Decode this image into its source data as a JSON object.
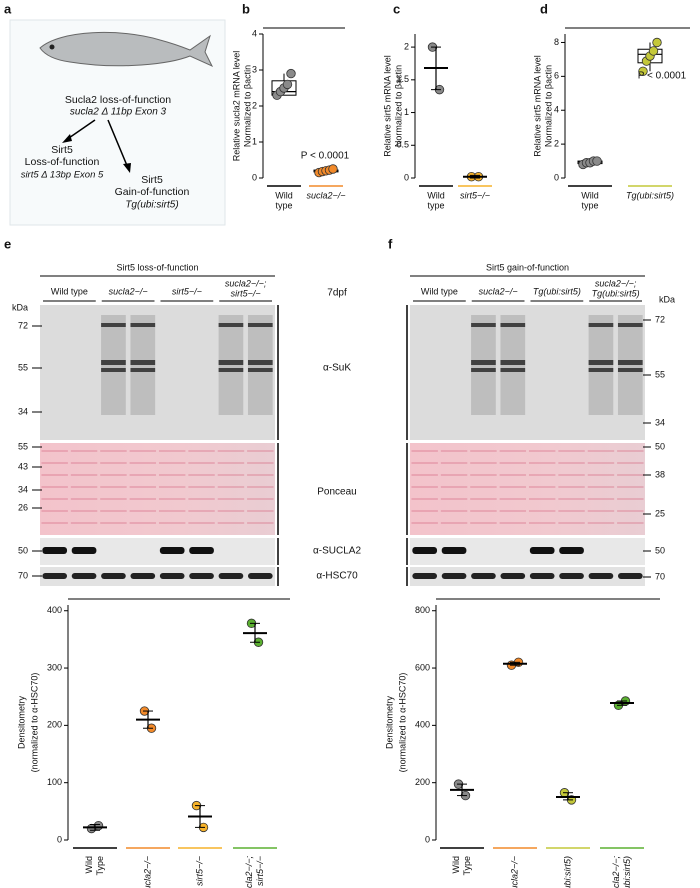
{
  "panel_labels": [
    "a",
    "b",
    "c",
    "d",
    "e",
    "f"
  ],
  "diagram": {
    "title": "Sucla2 loss-of-function",
    "title_sub": "sucla2 Δ 11bp Exon 3",
    "left": [
      "Sirt5",
      "Loss-of-function",
      "sirt5 Δ 13bp Exon 5"
    ],
    "right": [
      "Sirt5",
      "Gain-of-function",
      "Tg(ubi:sirt5)"
    ]
  },
  "chart_data": [
    {
      "type": "box",
      "ylabel": [
        "Relative sucla2 mRNA level",
        "Normalized to βactin"
      ],
      "categories": [
        [
          "Wild",
          "type"
        ],
        [
          "sucla2−/−"
        ]
      ],
      "colors": [
        "#8a8a8a",
        "#f28a2a"
      ],
      "line_colors": [
        "#000000",
        "#f28a2a"
      ],
      "points": [
        [
          2.3,
          2.4,
          2.5,
          2.6,
          2.9
        ],
        [
          0.15,
          0.18,
          0.2,
          0.22,
          0.25
        ]
      ],
      "center": [
        2.4,
        0.2
      ],
      "box": [
        [
          2.3,
          2.7
        ],
        [
          0.17,
          0.22
        ]
      ],
      "ylim": [
        0,
        4
      ],
      "yticks": [
        0,
        1,
        2,
        3,
        4
      ],
      "annotation": "P < 0.0001"
    },
    {
      "type": "dot",
      "ylabel": [
        "Relative sirt5 mRNA level",
        "Normalized to βactin"
      ],
      "categories": [
        [
          "Wild",
          "type"
        ],
        [
          "sirt5−/−"
        ]
      ],
      "colors": [
        "#8a8a8a",
        "#f6b22a"
      ],
      "line_colors": [
        "#000000",
        "#f6b22a"
      ],
      "points": [
        [
          2.0,
          1.35
        ],
        [
          0.02,
          0.02
        ]
      ],
      "center": [
        1.68,
        0.02
      ],
      "error": [
        [
          1.35,
          2.0
        ],
        [
          0.0,
          0.04
        ]
      ],
      "ylim": [
        0,
        2.2
      ],
      "yticks": [
        0,
        0.5,
        1,
        1.5,
        2
      ]
    },
    {
      "type": "box",
      "ylabel": [
        "Relative sirt5 mRNA level",
        "Normalized to βactin"
      ],
      "categories": [
        [
          "Wild",
          "type"
        ],
        [
          "Tg(ubi:sirt5)"
        ]
      ],
      "colors": [
        "#8a8a8a",
        "#c4c83a"
      ],
      "line_colors": [
        "#000000",
        "#c4c83a"
      ],
      "points": [
        [
          0.8,
          0.9,
          0.9,
          1.0,
          1.0
        ],
        [
          6.3,
          6.9,
          7.2,
          7.5,
          8.0
        ]
      ],
      "center": [
        0.95,
        7.3
      ],
      "box": [
        [
          0.85,
          1.0
        ],
        [
          6.8,
          7.6
        ]
      ],
      "ylim": [
        0,
        8.5
      ],
      "yticks": [
        0,
        2,
        4,
        6,
        8
      ],
      "annotation": "P < 0.0001"
    },
    {
      "type": "dot",
      "ylabel": [
        "Densitometry",
        "(normalized to α-HSC70)"
      ],
      "categories": [
        [
          "Wild",
          "Type"
        ],
        [
          "sucla2−/−"
        ],
        [
          "sirt5−/−"
        ],
        [
          "sucla2−/−;",
          "sirt5−/−"
        ]
      ],
      "colors": [
        "#8a8a8a",
        "#f28a2a",
        "#f6b22a",
        "#5bb030"
      ],
      "line_colors": [
        "#000000",
        "#f28a2a",
        "#f6b22a",
        "#5bb030"
      ],
      "points": [
        [
          20,
          25
        ],
        [
          225,
          195
        ],
        [
          60,
          22
        ],
        [
          378,
          345
        ]
      ],
      "center": [
        22,
        210,
        41,
        361
      ],
      "error": [
        [
          17,
          27
        ],
        [
          195,
          225
        ],
        [
          22,
          60
        ],
        [
          345,
          378
        ]
      ],
      "ylim": [
        0,
        410
      ],
      "yticks": [
        0,
        100,
        200,
        300,
        400
      ]
    },
    {
      "type": "dot",
      "ylabel": [
        "Densitometry",
        "(normalized to α-HSC70)"
      ],
      "categories": [
        [
          "Wild",
          "Type"
        ],
        [
          "sucla2−/−"
        ],
        [
          "Tg(ubi:sirt5)"
        ],
        [
          "sucla2−/−;",
          "Tg(ubi:sirt5)"
        ]
      ],
      "colors": [
        "#8a8a8a",
        "#f28a2a",
        "#c4c83a",
        "#5bb030"
      ],
      "line_colors": [
        "#000000",
        "#f28a2a",
        "#c4c83a",
        "#5bb030"
      ],
      "points": [
        [
          195,
          155
        ],
        [
          610,
          620
        ],
        [
          165,
          140
        ],
        [
          470,
          485
        ]
      ],
      "center": [
        175,
        615,
        150,
        478
      ],
      "error": [
        [
          155,
          195
        ],
        [
          610,
          620
        ],
        [
          140,
          165
        ],
        [
          470,
          485
        ]
      ],
      "ylim": [
        0,
        820
      ],
      "yticks": [
        0,
        200,
        400,
        600,
        800
      ]
    }
  ],
  "blots": {
    "middle": [
      "7dpf",
      "α-SuK",
      "Ponceau",
      "α-SUCLA2",
      "α-HSC70"
    ],
    "e": {
      "title": "Sirt5 loss-of-function",
      "lanes": [
        [
          "Wild type"
        ],
        [
          "sucla2−/−"
        ],
        [
          "sirt5−/−"
        ],
        [
          "sucla2−/−;",
          "sirt5−/−"
        ]
      ],
      "kda": [
        "kDa",
        "72",
        "55",
        "34",
        "55",
        "43",
        "34",
        "26",
        "50",
        "70"
      ]
    },
    "f": {
      "title": "Sirt5 gain-of-function",
      "lanes": [
        [
          "Wild type"
        ],
        [
          "sucla2−/−"
        ],
        [
          "Tg(ubi:sirt5)"
        ],
        [
          "sucla2−/−;",
          "Tg(ubi:sirt5)"
        ]
      ],
      "kda": [
        "kDa",
        "72",
        "55",
        "34",
        "50",
        "38",
        "25",
        "50",
        "70"
      ]
    }
  }
}
